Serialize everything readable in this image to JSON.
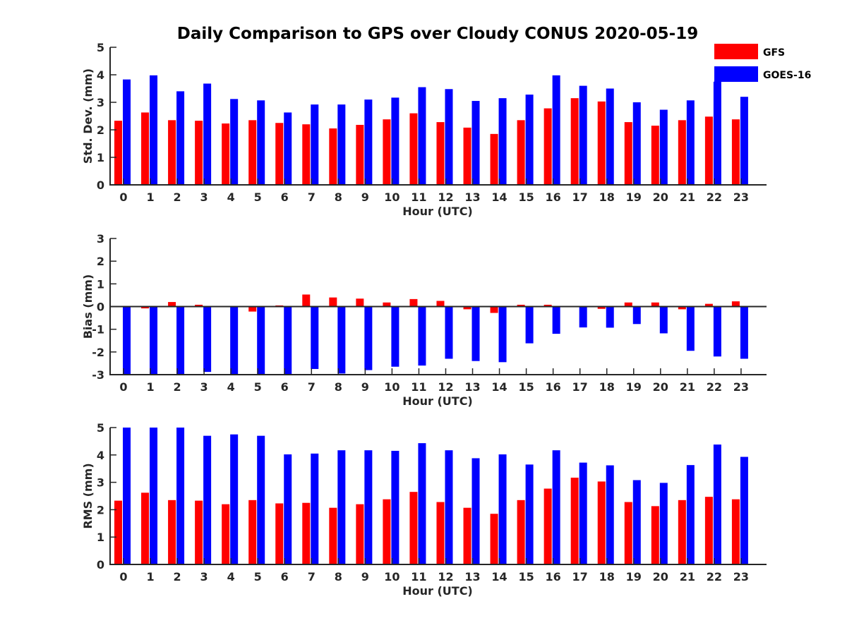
{
  "title": "Daily Comparison to GPS over Cloudy CONUS 2020-05-19",
  "legend": [
    {
      "label": "GFS",
      "color": "#ff0000"
    },
    {
      "label": "GOES-16",
      "color": "#0000ff"
    }
  ],
  "chart_data": [
    {
      "type": "bar",
      "name": "std-dev",
      "title": "Daily Comparison to GPS over Cloudy CONUS 2020-05-19",
      "xlabel": "Hour (UTC)",
      "ylabel": "Std. Dev. (mm)",
      "ylim": [
        0,
        5
      ],
      "yticks": [
        0,
        1,
        2,
        3,
        4,
        5
      ],
      "categories": [
        "0",
        "1",
        "2",
        "3",
        "4",
        "5",
        "6",
        "7",
        "8",
        "9",
        "10",
        "11",
        "12",
        "13",
        "14",
        "15",
        "16",
        "17",
        "18",
        "19",
        "20",
        "21",
        "22",
        "23"
      ],
      "series": [
        {
          "name": "GFS",
          "color": "#ff0000",
          "values": [
            2.33,
            2.63,
            2.35,
            2.33,
            2.23,
            2.35,
            2.25,
            2.2,
            2.05,
            2.18,
            2.38,
            2.6,
            2.28,
            2.08,
            1.85,
            2.35,
            2.78,
            3.15,
            3.03,
            2.28,
            2.15,
            2.35,
            2.48,
            2.38
          ]
        },
        {
          "name": "GOES-16",
          "color": "#0000ff",
          "values": [
            3.83,
            3.98,
            3.4,
            3.68,
            3.12,
            3.07,
            2.63,
            2.92,
            2.92,
            3.1,
            3.17,
            3.55,
            3.48,
            3.05,
            3.15,
            3.28,
            3.98,
            3.6,
            3.5,
            3.0,
            2.73,
            3.07,
            3.75,
            3.2
          ]
        }
      ],
      "grid": false,
      "legend_position": "top-right"
    },
    {
      "type": "bar",
      "name": "bias",
      "xlabel": "Hour (UTC)",
      "ylabel": "Bias (mm)",
      "ylim": [
        -3,
        3
      ],
      "yticks": [
        -3,
        -2,
        -1,
        0,
        1,
        2,
        3
      ],
      "categories": [
        "0",
        "1",
        "2",
        "3",
        "4",
        "5",
        "6",
        "7",
        "8",
        "9",
        "10",
        "11",
        "12",
        "13",
        "14",
        "15",
        "16",
        "17",
        "18",
        "19",
        "20",
        "21",
        "22",
        "23"
      ],
      "series": [
        {
          "name": "GFS",
          "color": "#ff0000",
          "values": [
            -0.03,
            -0.08,
            0.2,
            0.08,
            -0.03,
            -0.22,
            0.05,
            0.53,
            0.4,
            0.35,
            0.18,
            0.33,
            0.25,
            -0.12,
            -0.28,
            0.08,
            0.08,
            0.0,
            -0.1,
            0.18,
            0.18,
            -0.12,
            0.12,
            0.23
          ]
        },
        {
          "name": "GOES-16",
          "color": "#0000ff",
          "values": [
            -3.0,
            -3.0,
            -3.0,
            -2.88,
            -3.0,
            -3.0,
            -3.0,
            -2.75,
            -2.95,
            -2.8,
            -2.65,
            -2.6,
            -2.3,
            -2.4,
            -2.45,
            -1.62,
            -1.2,
            -0.92,
            -0.93,
            -0.77,
            -1.18,
            -1.95,
            -2.2,
            -2.3
          ]
        }
      ],
      "grid": false
    },
    {
      "type": "bar",
      "name": "rms",
      "xlabel": "Hour (UTC)",
      "ylabel": "RMS (mm)",
      "ylim": [
        0,
        5
      ],
      "yticks": [
        0,
        1,
        2,
        3,
        4,
        5
      ],
      "categories": [
        "0",
        "1",
        "2",
        "3",
        "4",
        "5",
        "6",
        "7",
        "8",
        "9",
        "10",
        "11",
        "12",
        "13",
        "14",
        "15",
        "16",
        "17",
        "18",
        "19",
        "20",
        "21",
        "22",
        "23"
      ],
      "series": [
        {
          "name": "GFS",
          "color": "#ff0000",
          "values": [
            2.33,
            2.62,
            2.35,
            2.33,
            2.2,
            2.35,
            2.23,
            2.25,
            2.07,
            2.2,
            2.38,
            2.65,
            2.28,
            2.07,
            1.85,
            2.35,
            2.77,
            3.17,
            3.03,
            2.28,
            2.13,
            2.35,
            2.47,
            2.38
          ]
        },
        {
          "name": "GOES-16",
          "color": "#0000ff",
          "values": [
            5.0,
            5.0,
            5.0,
            4.7,
            4.75,
            4.7,
            4.02,
            4.05,
            4.17,
            4.17,
            4.15,
            4.43,
            4.17,
            3.88,
            4.02,
            3.65,
            4.17,
            3.72,
            3.62,
            3.08,
            2.98,
            3.63,
            4.38,
            3.93
          ]
        }
      ],
      "grid": false
    }
  ]
}
